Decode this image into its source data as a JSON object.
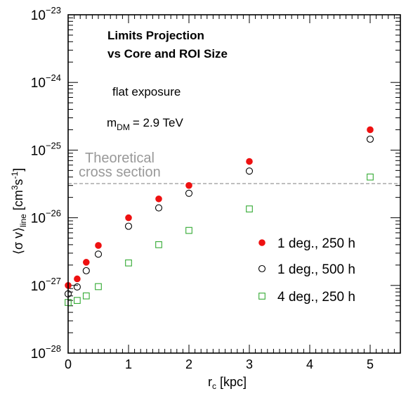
{
  "chart_data": {
    "type": "scatter",
    "title_lines": [
      "Limits Projection",
      "vs Core and ROI Size"
    ],
    "annotations": {
      "exposure": "flat exposure",
      "mass_label": "m",
      "mass_sub": "DM",
      "mass_value": "= 2.9 TeV"
    },
    "xlabel": {
      "main": "r",
      "sub": "c",
      "rest": " [kpc]"
    },
    "ylabel": {
      "open": "⟨σ v⟩",
      "sub": "line",
      "unit_a": " [cm",
      "sup1": "3",
      "unit_b": "s",
      "sup2": "-1",
      "close": "]"
    },
    "x_ticks": [
      "0",
      "1",
      "2",
      "3",
      "4",
      "5"
    ],
    "y_ticks": [
      {
        "exp": -28
      },
      {
        "exp": -27
      },
      {
        "exp": -26
      },
      {
        "exp": -25
      },
      {
        "exp": -24
      },
      {
        "exp": -23
      }
    ],
    "y_tick_base": "10",
    "xlim": [
      0,
      5.5
    ],
    "ylim": [
      1e-28,
      1e-23
    ],
    "yscale": "log",
    "grid": false,
    "legend_position": "lower-right",
    "reference_line": {
      "value": 3.2e-26,
      "label_lines": [
        "Theoretical",
        "cross section"
      ],
      "color": "#999999"
    },
    "series": [
      {
        "name": "1 deg., 250 h",
        "marker": "filled-circle",
        "color": "#ee1111",
        "x": [
          0,
          0.15,
          0.3,
          0.5,
          1,
          1.5,
          2,
          3,
          5
        ],
        "y": [
          1e-27,
          1.25e-27,
          2.2e-27,
          3.9e-27,
          1e-26,
          1.9e-26,
          3e-26,
          6.8e-26,
          2e-25
        ]
      },
      {
        "name": "1 deg., 500 h",
        "marker": "open-circle",
        "color": "#000000",
        "x": [
          0,
          0.15,
          0.3,
          0.5,
          1,
          1.5,
          2,
          3,
          5
        ],
        "y": [
          7.5e-28,
          9.5e-28,
          1.65e-27,
          2.9e-27,
          7.5e-27,
          1.4e-26,
          2.3e-26,
          4.9e-26,
          1.45e-25
        ]
      },
      {
        "name": "4 deg., 250 h",
        "marker": "open-square",
        "color": "#33aa33",
        "x": [
          0,
          0.15,
          0.3,
          0.5,
          1,
          1.5,
          2,
          3,
          5
        ],
        "y": [
          5.6e-28,
          6e-28,
          7e-28,
          9.6e-28,
          2.15e-27,
          4e-27,
          6.5e-27,
          1.35e-26,
          4e-26
        ]
      }
    ]
  }
}
